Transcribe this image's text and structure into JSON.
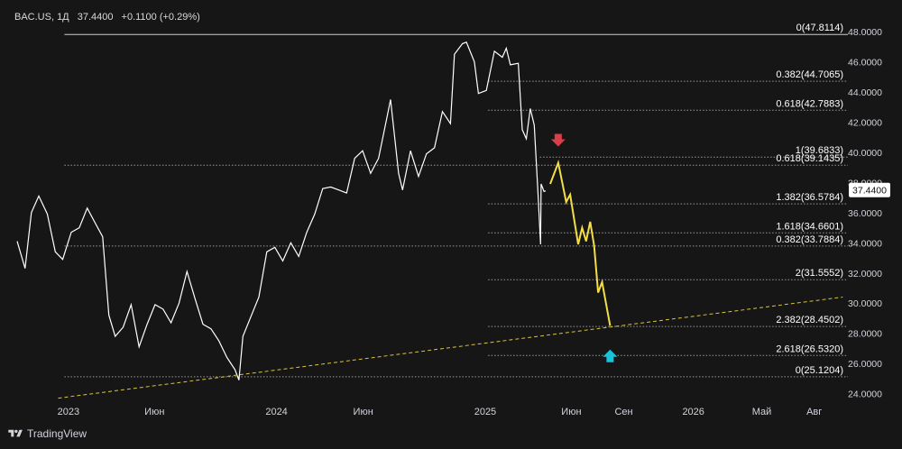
{
  "header": {
    "symbol": "BAC.US, 1Д",
    "price": "37.4400",
    "change": "+0.1100 (+0.29%)"
  },
  "footer": {
    "brand": "TradingView",
    "logo_icon": "tradingview-logo-icon"
  },
  "current_price_label": "37.4400",
  "colors": {
    "background": "#161616",
    "price_line": "#ffffff",
    "projection": "#f3df45",
    "trendline": "#d8c53a",
    "arrow_down": "#d83f4b",
    "arrow_up": "#19c2d9",
    "text": "#d1d4dc"
  },
  "chart_data": {
    "type": "line",
    "series": [
      {
        "style": "price",
        "points": [
          [
            "2022-10-03",
            34.1
          ],
          [
            "2022-10-17",
            32.3
          ],
          [
            "2022-10-28",
            36.0
          ],
          [
            "2022-11-10",
            37.1
          ],
          [
            "2022-11-25",
            35.9
          ],
          [
            "2022-12-09",
            33.4
          ],
          [
            "2022-12-22",
            32.9
          ],
          [
            "2023-01-06",
            34.7
          ],
          [
            "2023-01-20",
            35.0
          ],
          [
            "2023-02-03",
            36.3
          ],
          [
            "2023-02-17",
            35.3
          ],
          [
            "2023-03-02",
            34.4
          ],
          [
            "2023-03-13",
            29.2
          ],
          [
            "2023-03-24",
            27.8
          ],
          [
            "2023-04-07",
            28.4
          ],
          [
            "2023-04-21",
            29.9
          ],
          [
            "2023-05-05",
            27.1
          ],
          [
            "2023-05-19",
            28.6
          ],
          [
            "2023-06-02",
            29.9
          ],
          [
            "2023-06-16",
            29.6
          ],
          [
            "2023-06-30",
            28.7
          ],
          [
            "2023-07-14",
            30.0
          ],
          [
            "2023-07-28",
            32.1
          ],
          [
            "2023-08-11",
            30.3
          ],
          [
            "2023-08-25",
            28.6
          ],
          [
            "2023-09-08",
            28.3
          ],
          [
            "2023-09-22",
            27.5
          ],
          [
            "2023-10-06",
            26.4
          ],
          [
            "2023-10-20",
            25.6
          ],
          [
            "2023-10-27",
            24.9
          ],
          [
            "2023-11-03",
            27.8
          ],
          [
            "2023-11-17",
            29.1
          ],
          [
            "2023-12-01",
            30.4
          ],
          [
            "2023-12-15",
            33.4
          ],
          [
            "2023-12-29",
            33.7
          ],
          [
            "2024-01-12",
            32.8
          ],
          [
            "2024-01-26",
            34.0
          ],
          [
            "2024-02-09",
            33.1
          ],
          [
            "2024-02-23",
            34.7
          ],
          [
            "2024-03-08",
            35.9
          ],
          [
            "2024-03-22",
            37.6
          ],
          [
            "2024-04-05",
            37.7
          ],
          [
            "2024-04-19",
            37.5
          ],
          [
            "2024-05-03",
            37.3
          ],
          [
            "2024-05-17",
            39.6
          ],
          [
            "2024-05-31",
            40.1
          ],
          [
            "2024-06-14",
            38.6
          ],
          [
            "2024-06-28",
            39.6
          ],
          [
            "2024-07-12",
            42.2
          ],
          [
            "2024-07-19",
            43.5
          ],
          [
            "2024-08-02",
            38.6
          ],
          [
            "2024-08-09",
            37.5
          ],
          [
            "2024-08-23",
            40.1
          ],
          [
            "2024-09-06",
            38.4
          ],
          [
            "2024-09-20",
            39.9
          ],
          [
            "2024-10-04",
            40.3
          ],
          [
            "2024-10-18",
            42.7
          ],
          [
            "2024-11-01",
            41.9
          ],
          [
            "2024-11-08",
            46.5
          ],
          [
            "2024-11-22",
            47.2
          ],
          [
            "2024-11-29",
            47.3
          ],
          [
            "2024-12-13",
            46.0
          ],
          [
            "2024-12-20",
            43.9
          ],
          [
            "2025-01-03",
            44.1
          ],
          [
            "2025-01-17",
            46.7
          ],
          [
            "2025-01-31",
            46.3
          ],
          [
            "2025-02-07",
            46.9
          ],
          [
            "2025-02-14",
            45.8
          ],
          [
            "2025-02-28",
            45.9
          ],
          [
            "2025-03-07",
            41.5
          ],
          [
            "2025-03-14",
            40.9
          ],
          [
            "2025-03-21",
            42.9
          ],
          [
            "2025-03-28",
            41.8
          ],
          [
            "2025-04-04",
            37.0
          ],
          [
            "2025-04-08",
            33.9
          ],
          [
            "2025-04-09",
            37.9
          ],
          [
            "2025-04-14",
            37.4
          ],
          [
            "2025-04-17",
            37.44
          ]
        ]
      },
      {
        "style": "projection",
        "points": [
          [
            "2025-04-25",
            37.9
          ],
          [
            "2025-05-09",
            39.3
          ],
          [
            "2025-05-23",
            36.7
          ],
          [
            "2025-05-30",
            37.2
          ],
          [
            "2025-06-13",
            33.9
          ],
          [
            "2025-06-20",
            35.0
          ],
          [
            "2025-06-27",
            34.1
          ],
          [
            "2025-07-04",
            35.4
          ],
          [
            "2025-07-11",
            33.8
          ],
          [
            "2025-07-18",
            30.7
          ],
          [
            "2025-07-25",
            31.4
          ],
          [
            "2025-08-08",
            28.5
          ]
        ]
      },
      {
        "style": "trendline",
        "points": [
          [
            "2022-12-14",
            23.7
          ],
          [
            "2026-09-20",
            30.4
          ]
        ]
      }
    ],
    "fib_levels": [
      {
        "label": "0(47.8114)",
        "value": 47.8114,
        "from": "2022-12-25"
      },
      {
        "label": "0.382(44.7065)",
        "value": 44.7065,
        "from": "2025-01-06"
      },
      {
        "label": "0.618(42.7883)",
        "value": 42.7883,
        "from": "2025-01-06"
      },
      {
        "label": "1(39.6833)",
        "value": 39.6833,
        "from": "2025-04-07"
      },
      {
        "label": "0.618(39.1435)",
        "value": 39.1435,
        "from": "2022-12-25"
      },
      {
        "label": "1.382(36.5784)",
        "value": 36.5784,
        "from": "2025-01-06"
      },
      {
        "label": "1.618(34.6601)",
        "value": 34.6601,
        "from": "2025-01-06"
      },
      {
        "label": "0.382(33.7884)",
        "value": 33.7884,
        "from": "2022-12-25"
      },
      {
        "label": "2(31.5552)",
        "value": 31.5552,
        "from": "2025-01-06"
      },
      {
        "label": "2.382(28.4502)",
        "value": 28.4502,
        "from": "2025-01-06"
      },
      {
        "label": "2.618(26.5320)",
        "value": 26.532,
        "from": "2025-01-06"
      },
      {
        "label": "0(25.1204)",
        "value": 25.1204,
        "from": "2022-12-25"
      }
    ],
    "markers": [
      {
        "type": "arrow-down",
        "date": "2025-05-09",
        "value": 40.8
      },
      {
        "type": "arrow-up",
        "date": "2025-08-08",
        "value": 26.5
      }
    ],
    "x_ticks": [
      {
        "label": "2023",
        "date": "2023-01-01"
      },
      {
        "label": "Июн",
        "date": "2023-06-01"
      },
      {
        "label": "2024",
        "date": "2024-01-01"
      },
      {
        "label": "Июн",
        "date": "2024-06-01"
      },
      {
        "label": "2025",
        "date": "2025-01-01"
      },
      {
        "label": "Июн",
        "date": "2025-06-01"
      },
      {
        "label": "Сен",
        "date": "2025-09-01"
      },
      {
        "label": "2026",
        "date": "2026-01-01"
      },
      {
        "label": "Май",
        "date": "2026-05-01"
      },
      {
        "label": "Авг",
        "date": "2026-08-01"
      }
    ],
    "y_ticks": [
      "48.0000",
      "46.0000",
      "44.0000",
      "42.0000",
      "40.0000",
      "38.0000",
      "36.0000",
      "34.0000",
      "32.0000",
      "30.0000",
      "28.0000",
      "26.0000",
      "24.0000"
    ],
    "ylim": [
      23.2,
      48.9
    ],
    "xlim": [
      "2022-09-22",
      "2026-09-29"
    ],
    "grid": false
  }
}
